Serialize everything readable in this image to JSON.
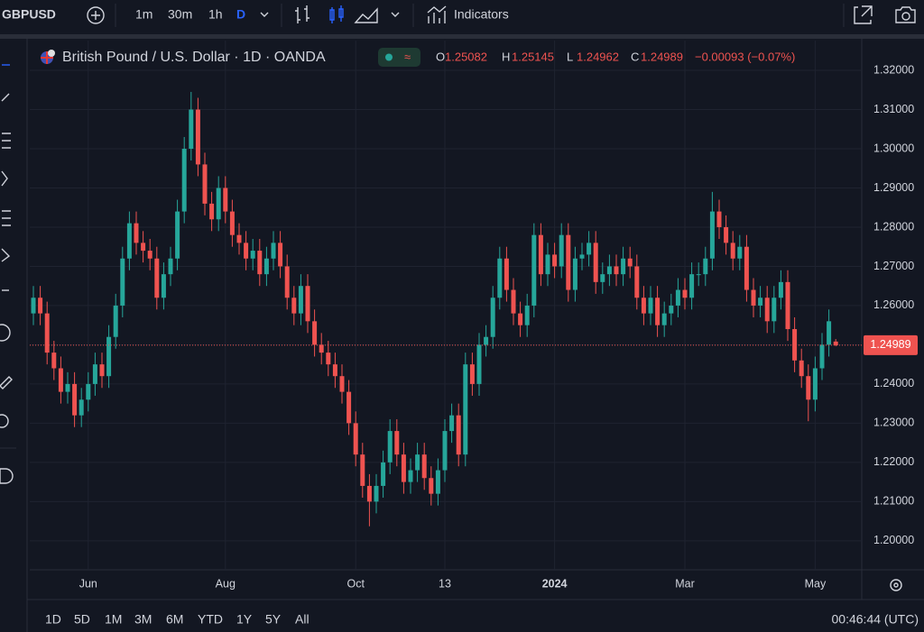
{
  "toolbar": {
    "symbol": "GBPUSD",
    "intervals": [
      "1m",
      "30m",
      "1h",
      "D"
    ],
    "indicators": "Indicators"
  },
  "chart_data": {
    "type": "candlestick",
    "title": "British Pound / U.S. Dollar · 1D · OANDA",
    "ohlc_labels": [
      "O",
      "H",
      "L",
      "C"
    ],
    "change": "−0.00093 (−0.07%)",
    "up_color": "#26a69a",
    "down_color": "#ef5350",
    "ylim": [
      1.1926,
      1.3276
    ],
    "yticks": [
      {
        "value": 1.2,
        "label": "1.20000"
      },
      {
        "value": 1.21,
        "label": "1.21000"
      },
      {
        "value": 1.22,
        "label": "1.22000"
      },
      {
        "value": 1.23,
        "label": "1.23000"
      },
      {
        "value": 1.24,
        "label": "1.24000"
      },
      {
        "value": 1.25,
        "label": "1.25000"
      },
      {
        "value": 1.26,
        "label": "1.26000"
      },
      {
        "value": 1.27,
        "label": "1.27000"
      },
      {
        "value": 1.28,
        "label": "1.28000"
      },
      {
        "value": 1.29,
        "label": "1.29000"
      },
      {
        "value": 1.3,
        "label": "1.30000"
      },
      {
        "value": 1.31,
        "label": "1.31000"
      },
      {
        "value": 1.32,
        "label": "1.32000"
      }
    ],
    "xticks": [
      {
        "value": 8,
        "label": "Jun"
      },
      {
        "value": 28,
        "label": "Aug"
      },
      {
        "value": 47,
        "label": "Oct"
      },
      {
        "value": 60,
        "label": "13"
      },
      {
        "value": 76,
        "label": "2024"
      },
      {
        "value": 95,
        "label": "Mar"
      },
      {
        "value": 114,
        "label": "May"
      }
    ],
    "open": [
      1.258,
      1.262,
      1.258,
      1.248,
      1.244,
      1.238,
      1.24,
      1.232,
      1.236,
      1.24,
      1.245,
      1.242,
      1.252,
      1.26,
      1.272,
      1.281,
      1.276,
      1.274,
      1.272,
      1.262,
      1.268,
      1.272,
      1.284,
      1.3,
      1.31,
      1.296,
      1.286,
      1.282,
      1.29,
      1.284,
      1.278,
      1.276,
      1.272,
      1.274,
      1.268,
      1.272,
      1.276,
      1.27,
      1.262,
      1.258,
      1.265,
      1.256,
      1.25,
      1.248,
      1.245,
      1.242,
      1.238,
      1.23,
      1.222,
      1.214,
      1.21,
      1.214,
      1.22,
      1.228,
      1.222,
      1.215,
      1.218,
      1.222,
      1.216,
      1.212,
      1.218,
      1.228,
      1.232,
      1.222,
      1.245,
      1.24,
      1.25,
      1.252,
      1.262,
      1.272,
      1.264,
      1.258,
      1.255,
      1.26,
      1.278,
      1.268,
      1.273,
      1.27,
      1.278,
      1.264,
      1.272,
      1.273,
      1.276,
      1.266,
      1.268,
      1.27,
      1.268,
      1.272,
      1.27,
      1.262,
      1.258,
      1.262,
      1.255,
      1.258,
      1.26,
      1.264,
      1.262,
      1.268,
      1.268,
      1.272,
      1.284,
      1.28,
      1.276,
      1.272,
      1.275,
      1.264,
      1.26,
      1.262,
      1.256,
      1.262,
      1.266,
      1.254,
      1.246,
      1.242,
      1.236,
      1.244,
      1.25,
      1.25082
    ],
    "high": [
      1.265,
      1.265,
      1.261,
      1.251,
      1.247,
      1.243,
      1.243,
      1.239,
      1.243,
      1.248,
      1.248,
      1.255,
      1.263,
      1.275,
      1.284,
      1.284,
      1.279,
      1.277,
      1.275,
      1.271,
      1.275,
      1.287,
      1.303,
      1.3145,
      1.313,
      1.299,
      1.289,
      1.293,
      1.293,
      1.287,
      1.281,
      1.279,
      1.277,
      1.277,
      1.275,
      1.279,
      1.279,
      1.273,
      1.265,
      1.268,
      1.268,
      1.259,
      1.253,
      1.251,
      1.248,
      1.245,
      1.241,
      1.233,
      1.225,
      1.217,
      1.217,
      1.223,
      1.231,
      1.231,
      1.225,
      1.221,
      1.225,
      1.225,
      1.219,
      1.221,
      1.231,
      1.235,
      1.235,
      1.248,
      1.248,
      1.253,
      1.255,
      1.265,
      1.275,
      1.275,
      1.267,
      1.261,
      1.263,
      1.281,
      1.281,
      1.276,
      1.276,
      1.281,
      1.281,
      1.275,
      1.276,
      1.279,
      1.279,
      1.271,
      1.273,
      1.273,
      1.275,
      1.275,
      1.273,
      1.265,
      1.265,
      1.265,
      1.261,
      1.263,
      1.267,
      1.267,
      1.271,
      1.271,
      1.275,
      1.289,
      1.287,
      1.283,
      1.279,
      1.278,
      1.278,
      1.267,
      1.265,
      1.265,
      1.265,
      1.269,
      1.269,
      1.257,
      1.249,
      1.245,
      1.247,
      1.253,
      1.259,
      1.25145
    ],
    "low": [
      1.255,
      1.255,
      1.245,
      1.241,
      1.235,
      1.235,
      1.229,
      1.229,
      1.233,
      1.237,
      1.239,
      1.239,
      1.249,
      1.257,
      1.269,
      1.273,
      1.271,
      1.269,
      1.259,
      1.259,
      1.265,
      1.269,
      1.281,
      1.297,
      1.293,
      1.283,
      1.279,
      1.279,
      1.281,
      1.275,
      1.273,
      1.269,
      1.269,
      1.265,
      1.265,
      1.269,
      1.267,
      1.259,
      1.255,
      1.255,
      1.253,
      1.247,
      1.245,
      1.242,
      1.239,
      1.235,
      1.227,
      1.219,
      1.211,
      1.2037,
      1.207,
      1.211,
      1.217,
      1.219,
      1.212,
      1.212,
      1.215,
      1.213,
      1.209,
      1.209,
      1.215,
      1.225,
      1.219,
      1.219,
      1.237,
      1.237,
      1.247,
      1.249,
      1.259,
      1.261,
      1.255,
      1.252,
      1.252,
      1.257,
      1.265,
      1.265,
      1.267,
      1.267,
      1.261,
      1.261,
      1.269,
      1.27,
      1.263,
      1.263,
      1.265,
      1.265,
      1.265,
      1.267,
      1.259,
      1.255,
      1.255,
      1.252,
      1.252,
      1.255,
      1.257,
      1.259,
      1.259,
      1.265,
      1.265,
      1.269,
      1.277,
      1.273,
      1.269,
      1.269,
      1.261,
      1.257,
      1.257,
      1.253,
      1.253,
      1.259,
      1.251,
      1.243,
      1.239,
      1.2305,
      1.233,
      1.241,
      1.247,
      1.24962
    ],
    "close": [
      1.262,
      1.258,
      1.248,
      1.244,
      1.238,
      1.24,
      1.232,
      1.236,
      1.24,
      1.245,
      1.242,
      1.252,
      1.26,
      1.272,
      1.281,
      1.276,
      1.274,
      1.272,
      1.262,
      1.268,
      1.272,
      1.284,
      1.3,
      1.31,
      1.296,
      1.286,
      1.282,
      1.29,
      1.284,
      1.278,
      1.276,
      1.272,
      1.274,
      1.268,
      1.272,
      1.276,
      1.27,
      1.262,
      1.258,
      1.265,
      1.256,
      1.25,
      1.248,
      1.245,
      1.242,
      1.238,
      1.23,
      1.222,
      1.214,
      1.21,
      1.214,
      1.22,
      1.228,
      1.222,
      1.215,
      1.218,
      1.222,
      1.216,
      1.212,
      1.218,
      1.228,
      1.232,
      1.222,
      1.245,
      1.24,
      1.25,
      1.252,
      1.262,
      1.272,
      1.264,
      1.258,
      1.255,
      1.26,
      1.278,
      1.268,
      1.273,
      1.27,
      1.278,
      1.264,
      1.272,
      1.273,
      1.276,
      1.266,
      1.268,
      1.27,
      1.268,
      1.272,
      1.27,
      1.262,
      1.258,
      1.262,
      1.255,
      1.258,
      1.26,
      1.264,
      1.262,
      1.268,
      1.268,
      1.272,
      1.284,
      1.28,
      1.276,
      1.272,
      1.275,
      1.264,
      1.26,
      1.262,
      1.256,
      1.262,
      1.266,
      1.254,
      1.246,
      1.242,
      1.236,
      1.244,
      1.25,
      1.256,
      1.24989
    ]
  },
  "range_bar": {
    "ranges": [
      "1D",
      "5D",
      "1M",
      "3M",
      "6M",
      "YTD",
      "1Y",
      "5Y",
      "All"
    ],
    "clock": "00:46:44 (UTC)"
  }
}
